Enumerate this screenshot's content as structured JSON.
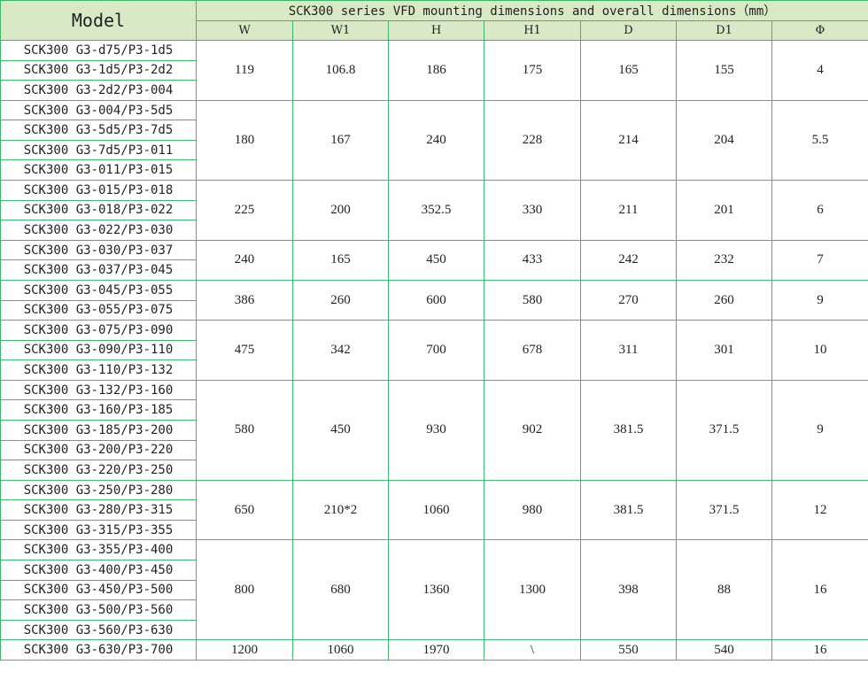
{
  "table": {
    "model_header": "Model",
    "title": "SCK300 series VFD mounting dimensions and overall dimensions（mm）",
    "columns": [
      "W",
      "W1",
      "H",
      "H1",
      "D",
      "D1",
      "Φ"
    ],
    "colors": {
      "border": "#3cb868",
      "header_bg": "#d9e9c6"
    },
    "groups": [
      {
        "models": [
          "SCK300 G3-d75/P3-1d5",
          "SCK300 G3-1d5/P3-2d2",
          "SCK300 G3-2d2/P3-004"
        ],
        "values": [
          "119",
          "106.8",
          "186",
          "175",
          "165",
          "155",
          "4"
        ]
      },
      {
        "models": [
          "SCK300 G3-004/P3-5d5",
          "SCK300 G3-5d5/P3-7d5",
          "SCK300 G3-7d5/P3-011",
          "SCK300 G3-011/P3-015"
        ],
        "values": [
          "180",
          "167",
          "240",
          "228",
          "214",
          "204",
          "5.5"
        ]
      },
      {
        "models": [
          "SCK300 G3-015/P3-018",
          "SCK300 G3-018/P3-022",
          "SCK300 G3-022/P3-030"
        ],
        "values": [
          "225",
          "200",
          "352.5",
          "330",
          "211",
          "201",
          "6"
        ]
      },
      {
        "models": [
          "SCK300 G3-030/P3-037",
          "SCK300 G3-037/P3-045"
        ],
        "values": [
          "240",
          "165",
          "450",
          "433",
          "242",
          "232",
          "7"
        ]
      },
      {
        "models": [
          "SCK300 G3-045/P3-055",
          "SCK300 G3-055/P3-075"
        ],
        "values": [
          "386",
          "260",
          "600",
          "580",
          "270",
          "260",
          "9"
        ]
      },
      {
        "models": [
          "SCK300 G3-075/P3-090",
          "SCK300 G3-090/P3-110",
          "SCK300 G3-110/P3-132"
        ],
        "values": [
          "475",
          "342",
          "700",
          "678",
          "311",
          "301",
          "10"
        ]
      },
      {
        "models": [
          "SCK300 G3-132/P3-160",
          "SCK300 G3-160/P3-185",
          "SCK300 G3-185/P3-200",
          "SCK300 G3-200/P3-220",
          "SCK300 G3-220/P3-250"
        ],
        "values": [
          "580",
          "450",
          "930",
          "902",
          "381.5",
          "371.5",
          "9"
        ]
      },
      {
        "models": [
          "SCK300 G3-250/P3-280",
          "SCK300 G3-280/P3-315",
          "SCK300 G3-315/P3-355"
        ],
        "values": [
          "650",
          "210*2",
          "1060",
          "980",
          "381.5",
          "371.5",
          "12"
        ]
      },
      {
        "models": [
          "SCK300 G3-355/P3-400",
          "SCK300 G3-400/P3-450",
          "SCK300 G3-450/P3-500",
          "SCK300 G3-500/P3-560",
          "SCK300 G3-560/P3-630"
        ],
        "values": [
          "800",
          "680",
          "1360",
          "1300",
          "398",
          "88",
          "16"
        ]
      },
      {
        "models": [
          "SCK300 G3-630/P3-700"
        ],
        "values": [
          "1200",
          "1060",
          "1970",
          "\\",
          "550",
          "540",
          "16"
        ]
      }
    ]
  }
}
